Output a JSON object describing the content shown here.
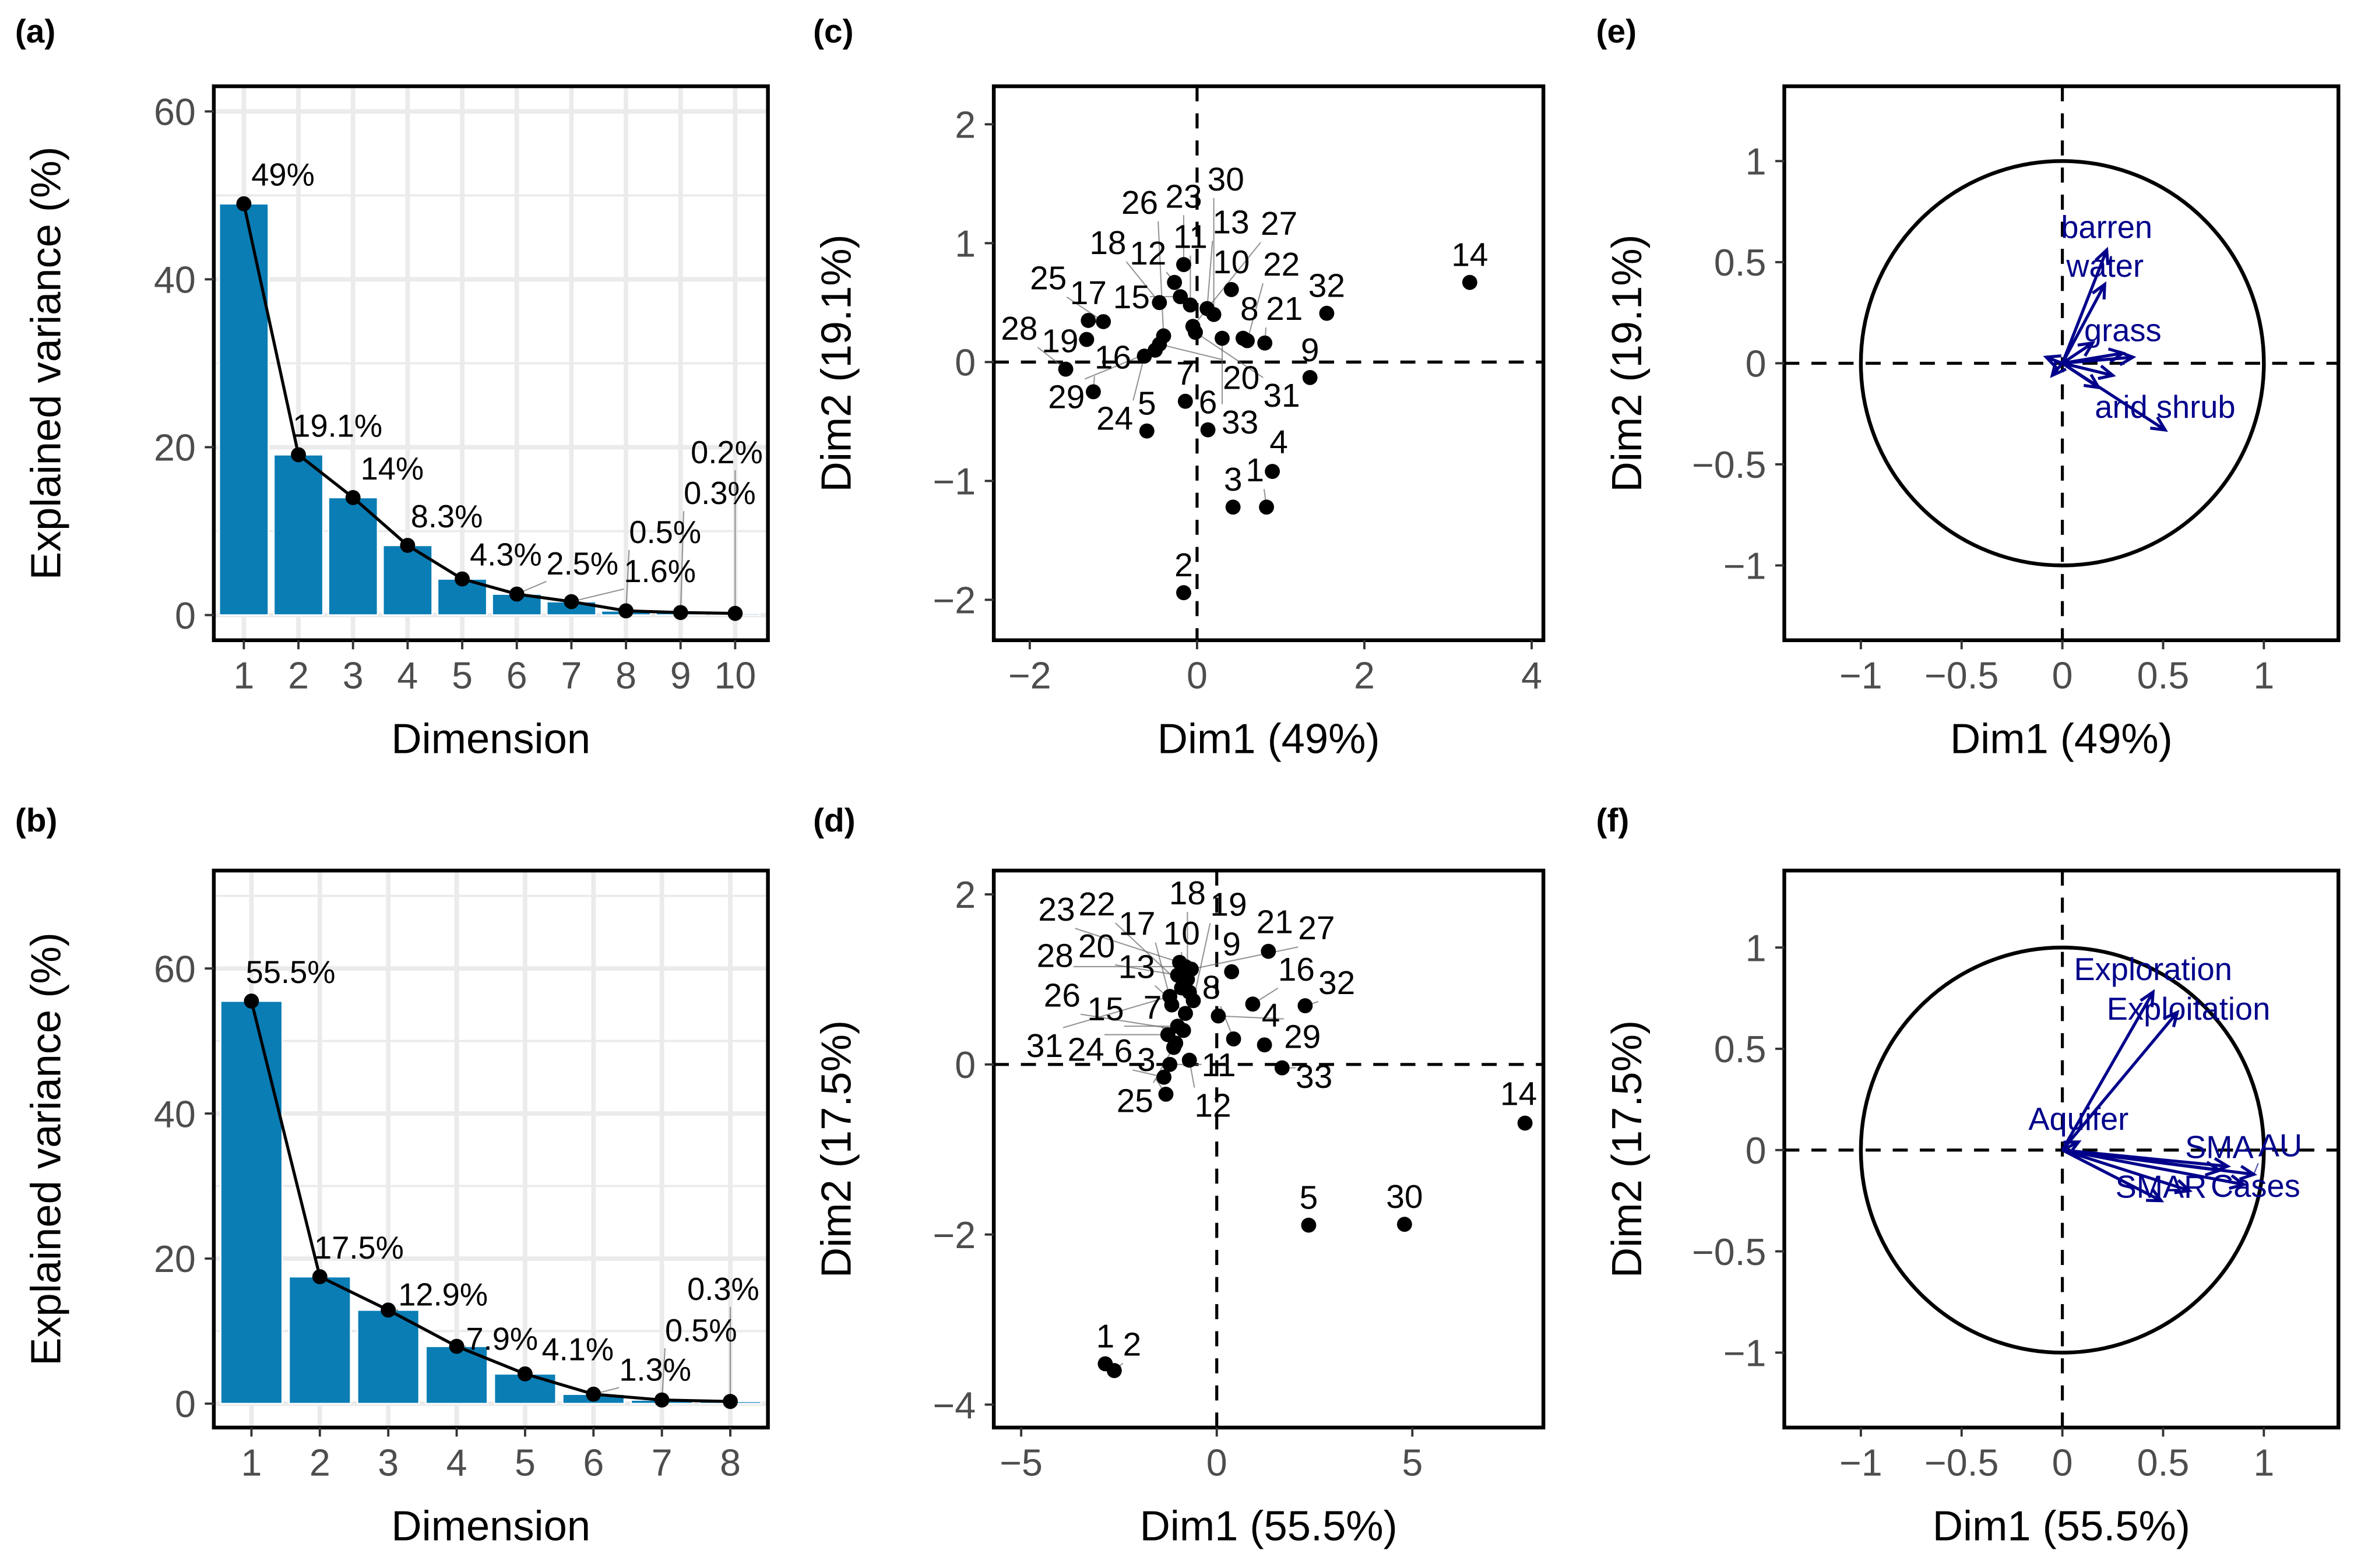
{
  "colors": {
    "bar": "#0a7db5",
    "arrow": "#00008b",
    "point": "#000000",
    "grid": "#ebebeb"
  },
  "chart_data": [
    {
      "panel": "(a)",
      "type": "bar",
      "xlabel": "Dimension",
      "ylabel": "Explained variance (%)",
      "categories": [
        1,
        2,
        3,
        4,
        5,
        6,
        7,
        8,
        9,
        10
      ],
      "values": [
        49,
        19.1,
        14,
        8.3,
        4.3,
        2.5,
        1.6,
        0.5,
        0.3,
        0.2
      ],
      "labels": [
        "49%",
        "19.1%",
        "14%",
        "8.3%",
        "4.3%",
        "2.5%",
        "1.6%",
        "0.5%",
        "0.3%",
        "0.2%"
      ],
      "xlim": [
        0.45,
        10.6
      ],
      "ylim": [
        -3,
        63
      ],
      "xticks": [
        "1",
        "2",
        "3",
        "4",
        "5",
        "6",
        "7",
        "8",
        "9",
        "10"
      ],
      "yticks": [
        0,
        20,
        40,
        60
      ],
      "yticklabels": [
        "0",
        "20",
        "40",
        "60"
      ],
      "grid": true
    },
    {
      "panel": "(b)",
      "type": "bar",
      "xlabel": "Dimension",
      "ylabel": "Explained variance (%)",
      "categories": [
        1,
        2,
        3,
        4,
        5,
        6,
        7,
        8
      ],
      "values": [
        55.5,
        17.5,
        12.9,
        7.9,
        4.1,
        1.3,
        0.5,
        0.3
      ],
      "labels": [
        "55.5%",
        "17.5%",
        "12.9%",
        "7.9%",
        "4.1%",
        "1.3%",
        "0.5%",
        "0.3%"
      ],
      "xlim": [
        0.45,
        8.55
      ],
      "ylim": [
        -3.3,
        73.5
      ],
      "xticks": [
        "1",
        "2",
        "3",
        "4",
        "5",
        "6",
        "7",
        "8"
      ],
      "yticks": [
        0,
        20,
        40,
        60
      ],
      "yticklabels": [
        "0",
        "20",
        "40",
        "60"
      ],
      "grid": true
    },
    {
      "panel": "(c)",
      "type": "scatter",
      "xlabel": "Dim1 (49%)",
      "ylabel": "Dim2 (19.1%)",
      "xlim": [
        -2.43,
        4.14
      ],
      "ylim": [
        -2.34,
        2.32
      ],
      "xticks": [
        -2,
        0,
        2,
        4
      ],
      "xticklabels": [
        "−2",
        "0",
        "2",
        "4"
      ],
      "yticks": [
        -2,
        -1,
        0,
        1,
        2
      ],
      "yticklabels": [
        "−2",
        "−1",
        "0",
        "1",
        "2"
      ],
      "points": [
        {
          "label": "1",
          "x": 0.83,
          "y": -1.22
        },
        {
          "label": "2",
          "x": -0.16,
          "y": -1.94
        },
        {
          "label": "3",
          "x": 0.43,
          "y": -1.22
        },
        {
          "label": "4",
          "x": 0.9,
          "y": -0.92
        },
        {
          "label": "5",
          "x": -0.6,
          "y": -0.58
        },
        {
          "label": "6",
          "x": 0.13,
          "y": -0.57
        },
        {
          "label": "7",
          "x": -0.14,
          "y": -0.33
        },
        {
          "label": "8",
          "x": 0.55,
          "y": 0.2
        },
        {
          "label": "9",
          "x": 1.35,
          "y": -0.13
        },
        {
          "label": "10",
          "x": 0.41,
          "y": 0.61
        },
        {
          "label": "11",
          "x": -0.08,
          "y": 0.48
        },
        {
          "label": "12",
          "x": -0.27,
          "y": 0.67
        },
        {
          "label": "13",
          "x": 0.12,
          "y": 0.45
        },
        {
          "label": "14",
          "x": 3.26,
          "y": 0.67
        },
        {
          "label": "15",
          "x": -0.2,
          "y": 0.55
        },
        {
          "label": "16",
          "x": -1.24,
          "y": -0.25
        },
        {
          "label": "17",
          "x": -1.3,
          "y": 0.35
        },
        {
          "label": "18",
          "x": -0.45,
          "y": 0.5
        },
        {
          "label": "19",
          "x": -1.32,
          "y": 0.19
        },
        {
          "label": "20",
          "x": -0.45,
          "y": 0.15
        },
        {
          "label": "21",
          "x": 0.81,
          "y": 0.16
        },
        {
          "label": "22",
          "x": 0.6,
          "y": 0.18
        },
        {
          "label": "23",
          "x": -0.16,
          "y": 0.82
        },
        {
          "label": "24",
          "x": -0.63,
          "y": 0.05
        },
        {
          "label": "25",
          "x": -1.12,
          "y": 0.34
        },
        {
          "label": "26",
          "x": -0.4,
          "y": 0.22
        },
        {
          "label": "27",
          "x": -0.05,
          "y": 0.3
        },
        {
          "label": "28",
          "x": -1.57,
          "y": -0.06
        },
        {
          "label": "29",
          "x": -0.5,
          "y": 0.1
        },
        {
          "label": "30",
          "x": 0.2,
          "y": 0.4
        },
        {
          "label": "31",
          "x": -0.02,
          "y": 0.25
        },
        {
          "label": "32",
          "x": 1.55,
          "y": 0.41
        },
        {
          "label": "33",
          "x": 0.3,
          "y": 0.2
        }
      ]
    },
    {
      "panel": "(d)",
      "type": "scatter",
      "xlabel": "Dim1 (55.5%)",
      "ylabel": "Dim2 (17.5%)",
      "xlim": [
        -5.7,
        8.35
      ],
      "ylim": [
        -4.27,
        2.28
      ],
      "xticks": [
        -5,
        0,
        5
      ],
      "xticklabels": [
        "−5",
        "0",
        "5"
      ],
      "yticks": [
        -4,
        -2,
        0,
        2
      ],
      "yticklabels": [
        "−4",
        "−2",
        "0",
        "2"
      ],
      "points": [
        {
          "label": "1",
          "x": -2.85,
          "y": -3.52
        },
        {
          "label": "2",
          "x": -2.62,
          "y": -3.6
        },
        {
          "label": "3",
          "x": -1.3,
          "y": -0.35
        },
        {
          "label": "4",
          "x": 1.22,
          "y": 0.23
        },
        {
          "label": "5",
          "x": 2.35,
          "y": -1.89
        },
        {
          "label": "6",
          "x": -1.35,
          "y": -0.15
        },
        {
          "label": "7",
          "x": -1.1,
          "y": 0.2
        },
        {
          "label": "8",
          "x": 0.43,
          "y": 0.3
        },
        {
          "label": "9",
          "x": 0.38,
          "y": 1.09
        },
        {
          "label": "10",
          "x": -0.9,
          "y": 0.9
        },
        {
          "label": "11",
          "x": -1.2,
          "y": 0.0
        },
        {
          "label": "12",
          "x": -0.7,
          "y": 0.05
        },
        {
          "label": "13",
          "x": -0.8,
          "y": 0.6
        },
        {
          "label": "14",
          "x": 7.88,
          "y": -0.69
        },
        {
          "label": "15",
          "x": -1.0,
          "y": 0.45
        },
        {
          "label": "16",
          "x": 0.92,
          "y": 0.71
        },
        {
          "label": "17",
          "x": -1.15,
          "y": 0.7
        },
        {
          "label": "18",
          "x": -0.75,
          "y": 1.0
        },
        {
          "label": "19",
          "x": -0.6,
          "y": 0.75
        },
        {
          "label": "20",
          "x": -1.0,
          "y": 1.05
        },
        {
          "label": "21",
          "x": 1.32,
          "y": 1.33
        },
        {
          "label": "22",
          "x": -0.7,
          "y": 0.85
        },
        {
          "label": "23",
          "x": -0.95,
          "y": 1.2
        },
        {
          "label": "24",
          "x": -1.25,
          "y": 0.35
        },
        {
          "label": "25",
          "x": -1.05,
          "y": 0.25
        },
        {
          "label": "26",
          "x": -0.85,
          "y": 0.4
        },
        {
          "label": "27",
          "x": -0.65,
          "y": 1.12
        },
        {
          "label": "28",
          "x": -0.8,
          "y": 1.15
        },
        {
          "label": "29",
          "x": 0.04,
          "y": 0.57
        },
        {
          "label": "30",
          "x": 4.8,
          "y": -1.88
        },
        {
          "label": "31",
          "x": -1.2,
          "y": 0.8
        },
        {
          "label": "32",
          "x": 2.26,
          "y": 0.69
        },
        {
          "label": "33",
          "x": 1.67,
          "y": -0.04
        }
      ]
    },
    {
      "panel": "(e)",
      "type": "biplot",
      "xlabel": "Dim1 (49%)",
      "ylabel": "Dim2 (19.1%)",
      "xlim": [
        -1.38,
        1.37
      ],
      "ylim": [
        -1.37,
        1.37
      ],
      "xticks": [
        -1,
        -0.5,
        0,
        0.5,
        1
      ],
      "xticklabels": [
        "−1",
        "−0.5",
        "0",
        "0.5",
        "1"
      ],
      "yticks": [
        -1,
        -0.5,
        0,
        0.5,
        1
      ],
      "yticklabels": [
        "−1",
        "−0.5",
        "0",
        "0.5",
        "1"
      ],
      "arrows": [
        {
          "label": "barren",
          "x": 0.22,
          "y": 0.56
        },
        {
          "label": "water",
          "x": 0.21,
          "y": 0.39
        },
        {
          "label": "grass",
          "x": 0.3,
          "y": 0.05
        },
        {
          "label": "arid shrub",
          "x": 0.51,
          "y": -0.33
        },
        {
          "label": "",
          "x": 0.35,
          "y": 0.03
        },
        {
          "label": "",
          "x": 0.25,
          "y": -0.06
        },
        {
          "label": "",
          "x": 0.18,
          "y": -0.12
        },
        {
          "label": "",
          "x": -0.05,
          "y": -0.06
        },
        {
          "label": "",
          "x": 0.15,
          "y": 0.1
        },
        {
          "label": "",
          "x": -0.08,
          "y": 0.03
        }
      ]
    },
    {
      "panel": "(f)",
      "type": "biplot",
      "xlabel": "Dim1 (55.5%)",
      "ylabel": "Dim2 (17.5%)",
      "xlim": [
        -1.38,
        1.37
      ],
      "ylim": [
        -1.37,
        1.38
      ],
      "xticks": [
        -1,
        -0.5,
        0,
        0.5,
        1
      ],
      "xticklabels": [
        "−1",
        "−0.5",
        "0",
        "0.5",
        "1"
      ],
      "yticks": [
        -1,
        -0.5,
        0,
        0.5,
        1
      ],
      "yticklabels": [
        "−1",
        "−0.5",
        "0",
        "0.5",
        "1"
      ],
      "arrows": [
        {
          "label": "Exploration",
          "x": 0.45,
          "y": 0.78
        },
        {
          "label": "Exploitation",
          "x": 0.57,
          "y": 0.68
        },
        {
          "label": "Aquifer",
          "x": 0.08,
          "y": 0.04
        },
        {
          "label": "SMA",
          "x": 0.78,
          "y": -0.1
        },
        {
          "label": "AU",
          "x": 0.95,
          "y": -0.12
        },
        {
          "label": "Cases",
          "x": 0.9,
          "y": -0.17
        },
        {
          "label": "SMAR",
          "x": 0.49,
          "y": -0.25
        },
        {
          "label": "",
          "x": 0.63,
          "y": -0.2
        },
        {
          "label": "",
          "x": 0.82,
          "y": -0.08
        }
      ]
    }
  ]
}
